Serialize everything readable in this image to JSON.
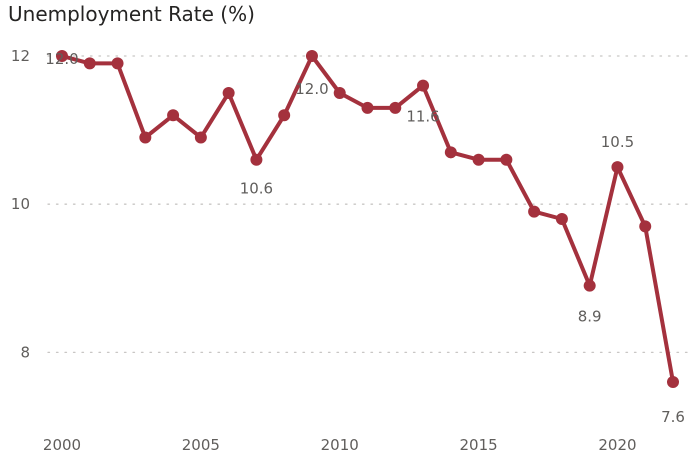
{
  "chart_data": {
    "type": "line",
    "title": "Unemployment Rate (%)",
    "xlabel": "",
    "ylabel": "",
    "color": "#a4313d",
    "grid": true,
    "x": [
      2000,
      2001,
      2002,
      2003,
      2004,
      2005,
      2006,
      2007,
      2008,
      2009,
      2010,
      2011,
      2012,
      2013,
      2014,
      2015,
      2016,
      2017,
      2018,
      2019,
      2020,
      2021,
      2022
    ],
    "values": [
      12.0,
      11.9,
      11.9,
      10.9,
      11.2,
      10.9,
      11.5,
      10.6,
      11.2,
      12.0,
      11.5,
      11.3,
      11.3,
      11.6,
      10.7,
      10.6,
      10.6,
      9.9,
      9.8,
      8.9,
      10.5,
      9.7,
      7.6
    ],
    "xticks": [
      2000,
      2005,
      2010,
      2015,
      2020
    ],
    "yticks": [
      8,
      10,
      12
    ],
    "xlim": [
      2000,
      2022
    ],
    "ylim": [
      7.6,
      12.0
    ],
    "data_labels": [
      {
        "x": 2000,
        "text": "12.0"
      },
      {
        "x": 2007,
        "text": "10.6"
      },
      {
        "x": 2009,
        "text": "12.0"
      },
      {
        "x": 2013,
        "text": "11.6"
      },
      {
        "x": 2019,
        "text": "8.9"
      },
      {
        "x": 2020,
        "text": "10.5"
      },
      {
        "x": 2022,
        "text": "7.6"
      }
    ]
  }
}
